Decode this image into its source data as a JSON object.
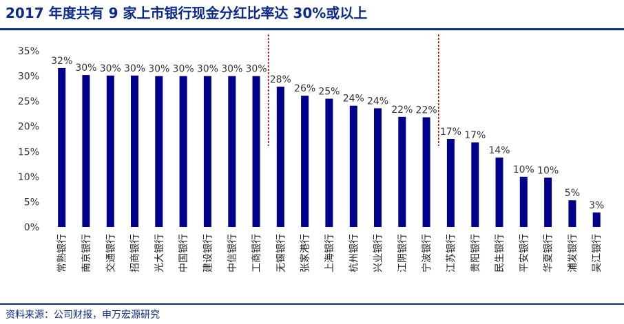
{
  "title": "2017 年度共有 9 家上市银行现金分红比率达 30%或以上",
  "source": "资料来源：公司财报，申万宏源研究",
  "colors": {
    "bar": "#00008b",
    "title": "#0b2a8a",
    "divider": "#c00000"
  },
  "chart_data": {
    "type": "bar",
    "title": "2017 年度共有 9 家上市银行现金分红比率达 30%或以上",
    "categories": [
      "常熟银行",
      "南京银行",
      "交通银行",
      "招商银行",
      "光大银行",
      "中国银行",
      "建设银行",
      "中信银行",
      "工商银行",
      "无锡银行",
      "张家港行",
      "上海银行",
      "杭州银行",
      "兴业银行",
      "江阴银行",
      "宁波银行",
      "江苏银行",
      "贵阳银行",
      "民生银行",
      "平安银行",
      "华夏银行",
      "浦发银行",
      "吴江银行"
    ],
    "values": [
      31.6,
      30.2,
      30.1,
      30.1,
      30.0,
      30.0,
      30.0,
      30.0,
      30.0,
      27.9,
      26.1,
      25.5,
      24.1,
      23.6,
      21.9,
      21.8,
      17.5,
      16.8,
      13.8,
      10.0,
      9.8,
      5.3,
      2.9
    ],
    "data_labels": [
      "32%",
      "30%",
      "30%",
      "30%",
      "30%",
      "30%",
      "30%",
      "30%",
      "30%",
      "28%",
      "26%",
      "25%",
      "24%",
      "24%",
      "22%",
      "22%",
      "17%",
      "17%",
      "14%",
      "10%",
      "10%",
      "5%",
      "3%"
    ],
    "ylim": [
      0,
      35
    ],
    "yticks": [
      "0%",
      "5%",
      "10%",
      "15%",
      "20%",
      "25%",
      "30%",
      "35%"
    ],
    "grid": false,
    "legend": "none",
    "group_dividers_after_index": [
      8,
      15
    ]
  }
}
